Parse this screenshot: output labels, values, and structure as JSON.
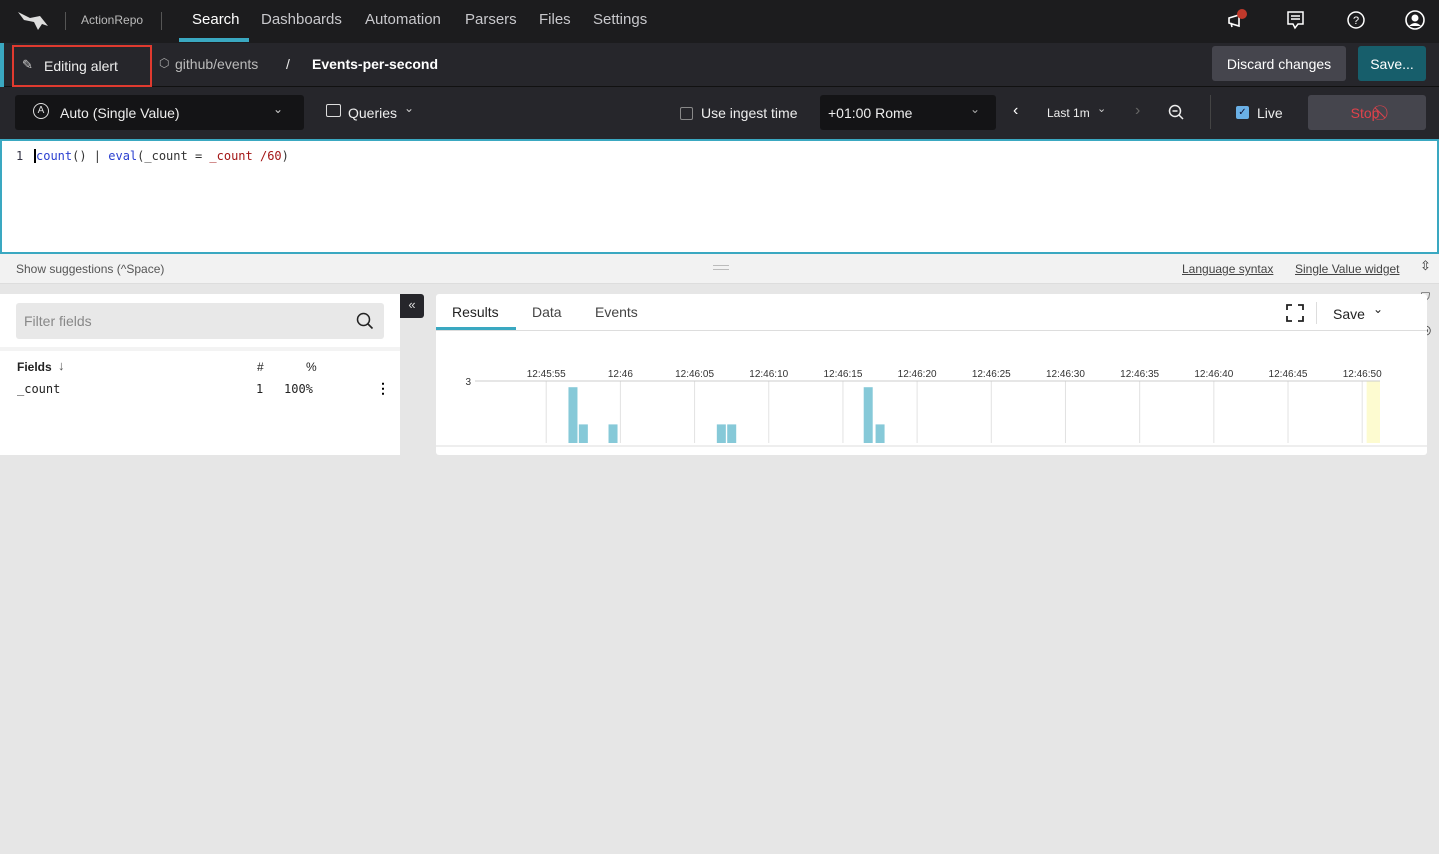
{
  "nav": {
    "repo": "ActionRepo",
    "items": [
      {
        "label": "Search",
        "active": true
      },
      {
        "label": "Dashboards"
      },
      {
        "label": "Automation"
      },
      {
        "label": "Parsers"
      },
      {
        "label": "Files"
      },
      {
        "label": "Settings"
      }
    ],
    "icons": [
      "megaphone-icon",
      "feedback-icon",
      "help-icon",
      "user-icon"
    ]
  },
  "header": {
    "mode": "Editing alert",
    "repository": "github/events",
    "separator": "/",
    "alert_name": "Events-per-second",
    "discard_label": "Discard changes",
    "save_label": "Save..."
  },
  "toolbar": {
    "widget": "Auto (Single Value)",
    "queries_label": "Queries",
    "ingest_label": "Use ingest time",
    "ingest_checked": false,
    "timezone": "+01:00 Rome",
    "time_range": "Last 1m",
    "live_label": "Live",
    "live_checked": true,
    "stop_label": "Stop"
  },
  "editor": {
    "line_number": "1",
    "tokens": [
      {
        "t": "count",
        "c": "#2a3fd0"
      },
      {
        "t": "() | ",
        "c": "#333"
      },
      {
        "t": "eval",
        "c": "#2a3fd0"
      },
      {
        "t": "(_count = ",
        "c": "#333"
      },
      {
        "t": "_count /60",
        "c": "#a31515"
      },
      {
        "t": ")",
        "c": "#333"
      }
    ]
  },
  "suggestions": {
    "hint": "Show suggestions (^Space)",
    "language_syntax": "Language syntax",
    "widget_link": "Single Value widget"
  },
  "fields": {
    "filter_placeholder": "Filter fields",
    "header": {
      "name": "Fields",
      "count": "#",
      "percent": "%"
    },
    "rows": [
      {
        "name": "_count",
        "count": "1",
        "percent": "100%"
      }
    ]
  },
  "results": {
    "tabs": [
      {
        "label": "Results",
        "active": true
      },
      {
        "label": "Data"
      },
      {
        "label": "Events"
      }
    ],
    "save_label": "Save"
  },
  "colors": {
    "accent": "#3aa8c1",
    "bar": "#86c9d8",
    "stop": "#e0424b",
    "save_button": "#175e6b",
    "highlight": "#fdfbd0"
  },
  "chart_data": {
    "type": "bar",
    "x_ticks": [
      "12:45:55",
      "12:46",
      "12:46:05",
      "12:46:10",
      "12:46:15",
      "12:46:20",
      "12:46:25",
      "12:46:30",
      "12:46:35",
      "12:46:40",
      "12:46:45",
      "12:46:50"
    ],
    "y_ticks": [
      "3"
    ],
    "ylim": [
      0,
      3
    ],
    "xlim": [
      "12:45:50.2",
      "12:46:51.2"
    ],
    "grid": true,
    "x": [
      "12:45:56.5",
      "12:45:57.2",
      "12:45:59.2",
      "12:46:06.5",
      "12:46:07.2",
      "12:46:16.4",
      "12:46:17.2"
    ],
    "values": [
      2.7,
      0.9,
      0.9,
      0.9,
      0.9,
      2.7,
      0.9
    ],
    "highlight_from": "12:46:50.3"
  }
}
